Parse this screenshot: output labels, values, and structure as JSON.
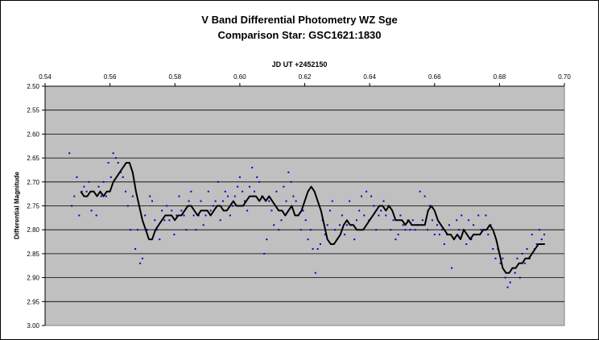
{
  "chart_data": {
    "type": "scatter",
    "title": "V Band Differential Photometry WZ Sge",
    "subtitle": "Comparison Star: GSC1621:1830",
    "xlabel": "JD UT +2452150",
    "ylabel": "Differential Magnitude",
    "xlim": [
      0.54,
      0.7
    ],
    "ylim": [
      2.5,
      3.0
    ],
    "y_inverted": true,
    "x_axis_position": "top",
    "xticks": [
      "0.54",
      "0.56",
      "0.58",
      "0.60",
      "0.62",
      "0.64",
      "0.66",
      "0.68",
      "0.70"
    ],
    "yticks": [
      "2.50",
      "2.55",
      "2.60",
      "2.65",
      "2.70",
      "2.75",
      "2.80",
      "2.85",
      "2.90",
      "2.95",
      "3.00"
    ],
    "grid": "horizontal",
    "plot_background": "#c0c0c0",
    "series": [
      {
        "name": "",
        "kind": "points",
        "color": "#0000cc",
        "x": [
          0.5475,
          0.5482,
          0.549,
          0.5498,
          0.5505,
          0.5513,
          0.552,
          0.5528,
          0.5535,
          0.5543,
          0.555,
          0.5558,
          0.5565,
          0.5573,
          0.558,
          0.5588,
          0.5595,
          0.5603,
          0.561,
          0.5618,
          0.5625,
          0.5633,
          0.564,
          0.5648,
          0.5655,
          0.5663,
          0.567,
          0.5678,
          0.5685,
          0.5693,
          0.57,
          0.5708,
          0.5715,
          0.5723,
          0.573,
          0.5738,
          0.5745,
          0.5753,
          0.576,
          0.5768,
          0.5775,
          0.5783,
          0.579,
          0.5798,
          0.5805,
          0.5813,
          0.582,
          0.5828,
          0.5835,
          0.5843,
          0.585,
          0.5858,
          0.5865,
          0.5873,
          0.588,
          0.5888,
          0.5895,
          0.5903,
          0.591,
          0.5918,
          0.5925,
          0.5933,
          0.594,
          0.5948,
          0.5955,
          0.5963,
          0.597,
          0.5978,
          0.5985,
          0.5993,
          0.6,
          0.6008,
          0.6015,
          0.6023,
          0.603,
          0.6038,
          0.6045,
          0.6053,
          0.606,
          0.6068,
          0.6075,
          0.6083,
          0.609,
          0.6098,
          0.6105,
          0.6113,
          0.612,
          0.6128,
          0.6135,
          0.6143,
          0.615,
          0.6158,
          0.6165,
          0.6173,
          0.618,
          0.6188,
          0.6195,
          0.6203,
          0.621,
          0.6218,
          0.6225,
          0.6233,
          0.624,
          0.6248,
          0.6255,
          0.6263,
          0.627,
          0.6278,
          0.6285,
          0.6293,
          0.63,
          0.6308,
          0.6315,
          0.6323,
          0.633,
          0.6338,
          0.6345,
          0.6353,
          0.636,
          0.6368,
          0.6375,
          0.6383,
          0.639,
          0.6398,
          0.6405,
          0.6413,
          0.642,
          0.6428,
          0.6435,
          0.6443,
          0.645,
          0.6458,
          0.6465,
          0.6473,
          0.648,
          0.6488,
          0.6495,
          0.6503,
          0.651,
          0.6518,
          0.6525,
          0.6533,
          0.654,
          0.6548,
          0.6555,
          0.6563,
          0.657,
          0.6578,
          0.6585,
          0.6593,
          0.66,
          0.6608,
          0.6615,
          0.6623,
          0.663,
          0.6638,
          0.6645,
          0.6653,
          0.666,
          0.6668,
          0.6675,
          0.6683,
          0.669,
          0.6698,
          0.6705,
          0.6713,
          0.672,
          0.6728,
          0.6735,
          0.6743,
          0.675,
          0.6758,
          0.6765,
          0.6773,
          0.678,
          0.6788,
          0.6795,
          0.6803,
          0.681,
          0.6818,
          0.6825,
          0.6833,
          0.684,
          0.6848,
          0.6855,
          0.6863,
          0.687,
          0.6878,
          0.6885,
          0.6893,
          0.69,
          0.6908,
          0.6915,
          0.6923,
          0.693,
          0.6938
        ],
        "y": [
          2.64,
          2.75,
          2.73,
          2.69,
          2.77,
          2.72,
          2.71,
          2.72,
          2.7,
          2.76,
          2.72,
          2.77,
          2.71,
          2.73,
          2.7,
          2.73,
          2.66,
          2.69,
          2.64,
          2.65,
          2.66,
          2.68,
          2.69,
          2.72,
          2.75,
          2.8,
          2.73,
          2.84,
          2.8,
          2.87,
          2.86,
          2.77,
          2.8,
          2.73,
          2.74,
          2.78,
          2.8,
          2.82,
          2.76,
          2.78,
          2.75,
          2.78,
          2.76,
          2.81,
          2.77,
          2.73,
          2.76,
          2.77,
          2.8,
          2.74,
          2.72,
          2.77,
          2.8,
          2.77,
          2.74,
          2.79,
          2.77,
          2.72,
          2.76,
          2.75,
          2.74,
          2.7,
          2.78,
          2.74,
          2.72,
          2.73,
          2.77,
          2.75,
          2.73,
          2.71,
          2.69,
          2.72,
          2.74,
          2.76,
          2.71,
          2.67,
          2.72,
          2.69,
          2.7,
          2.73,
          2.85,
          2.82,
          2.74,
          2.76,
          2.79,
          2.72,
          2.8,
          2.78,
          2.71,
          2.74,
          2.68,
          2.7,
          2.73,
          2.74,
          2.77,
          2.8,
          2.76,
          2.78,
          2.82,
          2.8,
          2.84,
          2.89,
          2.84,
          2.83,
          2.78,
          2.81,
          2.79,
          2.76,
          2.74,
          2.8,
          2.82,
          2.79,
          2.77,
          2.81,
          2.79,
          2.74,
          2.79,
          2.82,
          2.78,
          2.76,
          2.73,
          2.77,
          2.72,
          2.78,
          2.73,
          2.75,
          2.8,
          2.77,
          2.76,
          2.74,
          2.77,
          2.75,
          2.8,
          2.78,
          2.82,
          2.81,
          2.77,
          2.79,
          2.8,
          2.78,
          2.8,
          2.78,
          2.8,
          2.79,
          2.72,
          2.78,
          2.73,
          2.8,
          2.75,
          2.78,
          2.81,
          2.79,
          2.81,
          2.8,
          2.83,
          2.81,
          2.79,
          2.88,
          2.82,
          2.78,
          2.8,
          2.77,
          2.8,
          2.83,
          2.78,
          2.82,
          2.79,
          2.81,
          2.77,
          2.8,
          2.8,
          2.77,
          2.81,
          2.79,
          2.84,
          2.86,
          2.84,
          2.87,
          2.86,
          2.9,
          2.92,
          2.91,
          2.88,
          2.89,
          2.86,
          2.9,
          2.85,
          2.87,
          2.84,
          2.86,
          2.81,
          2.84,
          2.83,
          2.8,
          2.82,
          2.81
        ]
      },
      {
        "name": "",
        "kind": "line",
        "color": "#000000",
        "x": [
          0.551,
          0.552,
          0.553,
          0.554,
          0.555,
          0.556,
          0.557,
          0.558,
          0.559,
          0.56,
          0.561,
          0.562,
          0.563,
          0.564,
          0.565,
          0.566,
          0.567,
          0.568,
          0.569,
          0.57,
          0.571,
          0.572,
          0.573,
          0.574,
          0.575,
          0.576,
          0.577,
          0.578,
          0.579,
          0.58,
          0.581,
          0.582,
          0.583,
          0.584,
          0.585,
          0.586,
          0.587,
          0.588,
          0.589,
          0.59,
          0.591,
          0.592,
          0.593,
          0.594,
          0.595,
          0.596,
          0.597,
          0.598,
          0.599,
          0.6,
          0.601,
          0.602,
          0.603,
          0.604,
          0.605,
          0.606,
          0.607,
          0.608,
          0.609,
          0.61,
          0.611,
          0.612,
          0.613,
          0.614,
          0.615,
          0.616,
          0.617,
          0.618,
          0.619,
          0.62,
          0.621,
          0.622,
          0.623,
          0.624,
          0.625,
          0.626,
          0.627,
          0.628,
          0.629,
          0.63,
          0.631,
          0.632,
          0.633,
          0.634,
          0.635,
          0.636,
          0.637,
          0.638,
          0.639,
          0.64,
          0.641,
          0.642,
          0.643,
          0.644,
          0.645,
          0.646,
          0.647,
          0.648,
          0.649,
          0.65,
          0.651,
          0.652,
          0.653,
          0.654,
          0.655,
          0.656,
          0.657,
          0.658,
          0.659,
          0.66,
          0.661,
          0.662,
          0.663,
          0.664,
          0.665,
          0.666,
          0.667,
          0.668,
          0.669,
          0.67,
          0.671,
          0.672,
          0.673,
          0.674,
          0.675,
          0.676,
          0.677,
          0.678,
          0.679,
          0.68,
          0.681,
          0.682,
          0.683,
          0.684,
          0.685,
          0.686,
          0.687,
          0.688,
          0.689,
          0.69,
          0.691,
          0.692,
          0.693,
          0.694
        ],
        "y": [
          2.72,
          2.73,
          2.73,
          2.72,
          2.72,
          2.73,
          2.72,
          2.73,
          2.72,
          2.72,
          2.7,
          2.69,
          2.68,
          2.67,
          2.66,
          2.66,
          2.68,
          2.72,
          2.75,
          2.78,
          2.8,
          2.82,
          2.82,
          2.8,
          2.79,
          2.78,
          2.77,
          2.77,
          2.77,
          2.78,
          2.77,
          2.77,
          2.76,
          2.75,
          2.75,
          2.76,
          2.77,
          2.76,
          2.76,
          2.76,
          2.77,
          2.76,
          2.75,
          2.75,
          2.76,
          2.76,
          2.75,
          2.74,
          2.75,
          2.75,
          2.75,
          2.74,
          2.73,
          2.73,
          2.73,
          2.74,
          2.73,
          2.74,
          2.73,
          2.74,
          2.75,
          2.76,
          2.76,
          2.77,
          2.76,
          2.75,
          2.77,
          2.77,
          2.76,
          2.74,
          2.72,
          2.71,
          2.72,
          2.74,
          2.76,
          2.79,
          2.82,
          2.83,
          2.83,
          2.82,
          2.81,
          2.79,
          2.78,
          2.79,
          2.79,
          2.8,
          2.8,
          2.8,
          2.79,
          2.78,
          2.77,
          2.76,
          2.75,
          2.75,
          2.76,
          2.75,
          2.76,
          2.78,
          2.78,
          2.78,
          2.79,
          2.78,
          2.79,
          2.79,
          2.79,
          2.79,
          2.79,
          2.76,
          2.75,
          2.76,
          2.78,
          2.79,
          2.8,
          2.81,
          2.81,
          2.82,
          2.81,
          2.82,
          2.8,
          2.81,
          2.82,
          2.81,
          2.81,
          2.81,
          2.8,
          2.8,
          2.79,
          2.8,
          2.82,
          2.85,
          2.88,
          2.89,
          2.89,
          2.88,
          2.88,
          2.87,
          2.87,
          2.86,
          2.86,
          2.85,
          2.84,
          2.83,
          2.83,
          2.83
        ]
      }
    ]
  }
}
